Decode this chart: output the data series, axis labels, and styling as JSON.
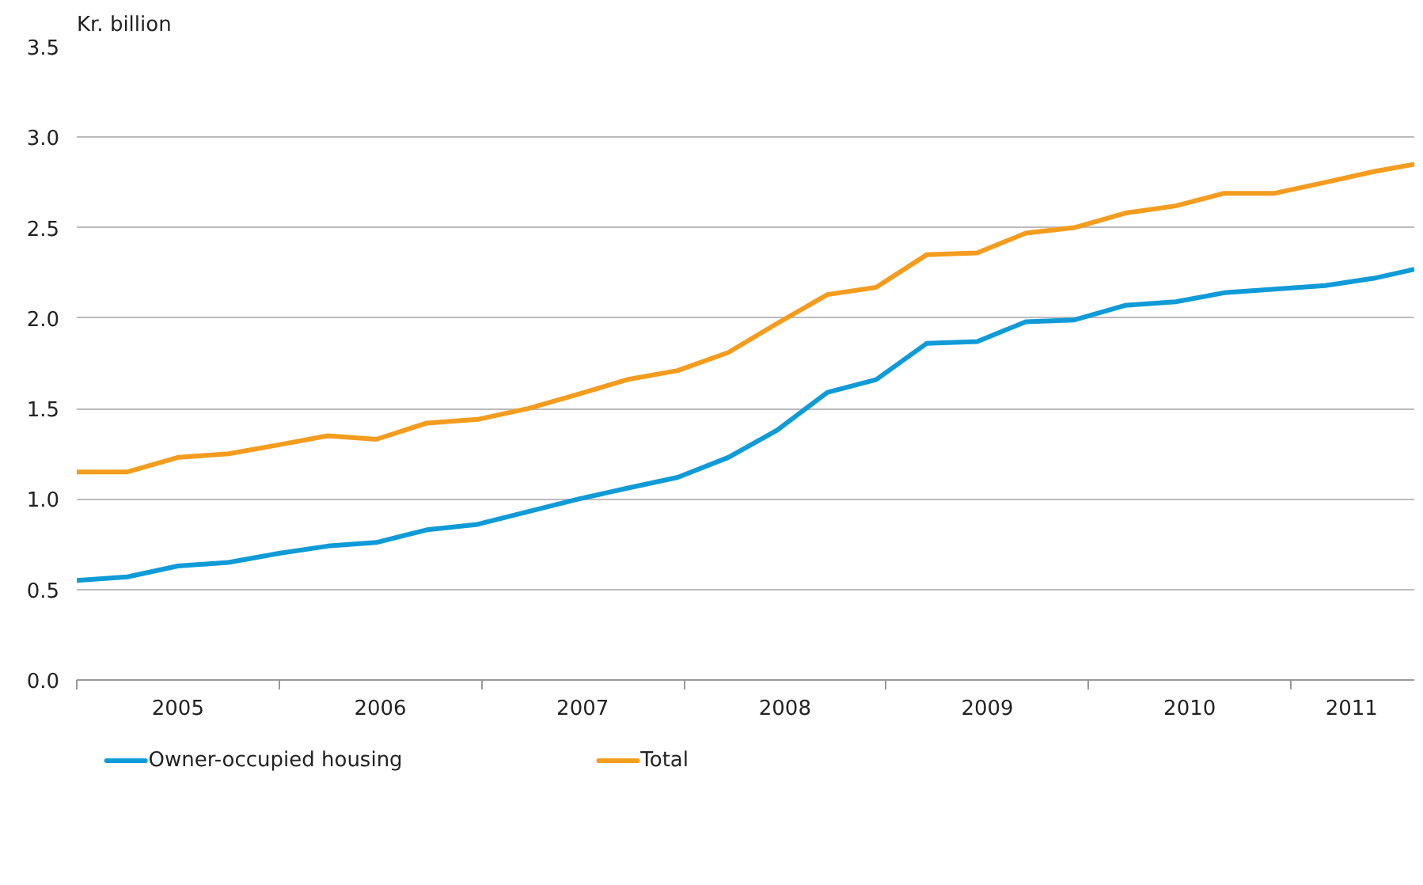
{
  "chart_data": {
    "type": "line",
    "ylabel": "Kr. billion",
    "x": [
      2005.0,
      2005.25,
      2005.5,
      2005.75,
      2006.0,
      2006.24,
      2006.48,
      2006.73,
      2006.98,
      2007.23,
      2007.48,
      2007.72,
      2007.97,
      2008.22,
      2008.46,
      2008.71,
      2008.95,
      2009.2,
      2009.45,
      2009.69,
      2009.93,
      2010.18,
      2010.43,
      2010.67,
      2010.92,
      2011.17,
      2011.41,
      2011.61
    ],
    "series": [
      {
        "name": "Owner-occupied housing",
        "color": "#0f9bd7",
        "values": [
          0.55,
          0.57,
          0.63,
          0.65,
          0.7,
          0.74,
          0.76,
          0.83,
          0.86,
          0.93,
          1.0,
          1.06,
          1.12,
          1.23,
          1.38,
          1.59,
          1.66,
          1.86,
          1.87,
          1.98,
          1.99,
          2.07,
          2.09,
          2.14,
          2.16,
          2.18,
          2.22,
          2.27
        ]
      },
      {
        "name": "Total",
        "color": "#f39c1e",
        "values": [
          1.15,
          1.15,
          1.23,
          1.25,
          1.3,
          1.35,
          1.33,
          1.42,
          1.44,
          1.5,
          1.58,
          1.66,
          1.71,
          1.81,
          1.97,
          2.13,
          2.17,
          2.35,
          2.36,
          2.47,
          2.5,
          2.58,
          2.62,
          2.69,
          2.69,
          2.75,
          2.81,
          2.85
        ]
      }
    ],
    "xlim": [
      2005,
      2011.61
    ],
    "xticks": [
      {
        "value": 2005,
        "label": null
      },
      {
        "value": 2005.5,
        "label": "2005"
      },
      {
        "value": 2006,
        "label": null
      },
      {
        "value": 2006.5,
        "label": "2006"
      },
      {
        "value": 2007,
        "label": null
      },
      {
        "value": 2007.5,
        "label": "2007"
      },
      {
        "value": 2008,
        "label": null
      },
      {
        "value": 2008.5,
        "label": "2008"
      },
      {
        "value": 2009,
        "label": null
      },
      {
        "value": 2009.5,
        "label": "2009"
      },
      {
        "value": 2010,
        "label": null
      },
      {
        "value": 2010.5,
        "label": "2010"
      },
      {
        "value": 2011,
        "label": null
      },
      {
        "value": 2011.3,
        "label": "2011"
      }
    ],
    "ylim": [
      0,
      3.5
    ],
    "yticks": [
      {
        "value": 0,
        "label": "0.0"
      },
      {
        "value": 0.5,
        "label": "0.5"
      },
      {
        "value": 1,
        "label": "1.0"
      },
      {
        "value": 1.5,
        "label": "1.5"
      },
      {
        "value": 2,
        "label": "2.0"
      },
      {
        "value": 2.5,
        "label": "2.5"
      },
      {
        "value": 3,
        "label": "3.0"
      },
      {
        "value": 3.5,
        "label": "3.5"
      }
    ],
    "grid": "y",
    "legend": "bottom",
    "marker": "none",
    "line_style": "solid"
  }
}
